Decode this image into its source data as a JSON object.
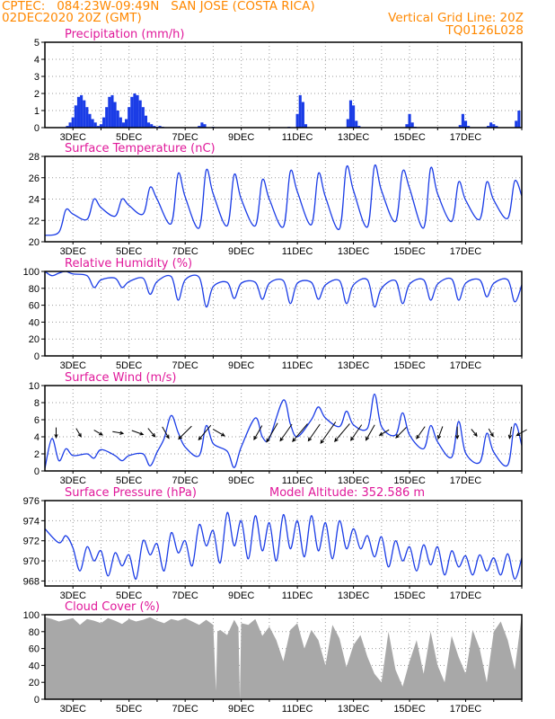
{
  "header": {
    "line1": "CPTEC:   084:23W-09:49N   SAN JOSE (COSTA RICA)",
    "line2": "02DEC2020 20Z (GMT)",
    "grid_note": "Vertical Grid Line: 20Z",
    "code": "TQ0126L028"
  },
  "colors": {
    "header": "#ff8800",
    "panel_title": "#e0189a",
    "series_line": "#1a3ce6",
    "precip_bar": "#1a3ce6",
    "cloud_fill": "#a8a8a8",
    "grid": "#9a9a9a",
    "arrow": "#000000"
  },
  "chart_data": [
    {
      "id": "precip",
      "type": "bar",
      "title": "Precipitation (mm/h)",
      "ylim": [
        0,
        5
      ],
      "yticks": [
        0,
        1,
        2,
        3,
        4,
        5
      ],
      "xticks": [
        "3DEC",
        "5DEC",
        "7DEC",
        "9DEC",
        "11DEC",
        "13DEC",
        "15DEC",
        "17DEC"
      ],
      "grid": true,
      "x": [
        0.8,
        0.9,
        1.0,
        1.1,
        1.2,
        1.3,
        1.4,
        1.5,
        1.6,
        1.7,
        1.8,
        1.9,
        2.0,
        2.1,
        2.2,
        2.3,
        2.4,
        2.5,
        2.6,
        2.7,
        2.8,
        2.9,
        3.0,
        3.1,
        3.2,
        3.3,
        3.4,
        3.5,
        3.6,
        3.7,
        3.8,
        3.9,
        4.0,
        4.1,
        4.2,
        5.5,
        5.6,
        5.7,
        6.0,
        8.7,
        9.0,
        9.1,
        9.2,
        9.3,
        10.8,
        10.9,
        11.0,
        11.1,
        11.2,
        12.9,
        13.0,
        13.1,
        13.2,
        14.8,
        14.9,
        15.0,
        15.1,
        15.8,
        15.9,
        16.0,
        16.1,
        16.8,
        16.9
      ],
      "values": [
        0.1,
        0.3,
        0.6,
        1.3,
        1.8,
        1.9,
        1.6,
        1.2,
        0.8,
        0.5,
        0.3,
        0.1,
        0.2,
        0.6,
        1.2,
        1.8,
        1.9,
        1.5,
        1.0,
        0.6,
        0.3,
        0.5,
        1.2,
        1.8,
        2.0,
        1.9,
        1.6,
        1.2,
        0.7,
        0.3,
        0.2,
        0.1,
        0.05,
        0.1,
        0.05,
        0.1,
        0.3,
        0.2,
        0.05,
        0.05,
        0.8,
        1.9,
        1.5,
        0.2,
        0.5,
        1.6,
        1.3,
        0.4,
        0.1,
        0.2,
        0.8,
        0.3,
        0.05,
        0.15,
        0.8,
        0.4,
        0.1,
        0.1,
        0.3,
        0.2,
        0.1,
        0.4,
        1.0
      ]
    },
    {
      "id": "temp",
      "type": "line",
      "title": "Surface Temperature (nC)",
      "ylim": [
        20,
        28
      ],
      "yticks": [
        20,
        22,
        24,
        26,
        28
      ],
      "xticks": [
        "3DEC",
        "5DEC",
        "7DEC",
        "9DEC",
        "11DEC",
        "13DEC",
        "15DEC",
        "17DEC"
      ],
      "grid": true,
      "x": [
        0.0,
        0.5,
        0.75,
        1.0,
        1.5,
        1.75,
        2.0,
        2.5,
        2.75,
        3.0,
        3.5,
        3.75,
        4.0,
        4.5,
        4.75,
        5.0,
        5.5,
        5.75,
        6.0,
        6.5,
        6.75,
        7.0,
        7.5,
        7.75,
        8.0,
        8.5,
        8.75,
        9.0,
        9.5,
        9.75,
        10.0,
        10.5,
        10.75,
        11.0,
        11.5,
        11.75,
        12.0,
        12.5,
        12.75,
        13.0,
        13.5,
        13.75,
        14.0,
        14.5,
        14.75,
        15.0,
        15.5,
        15.75,
        16.0,
        16.5,
        16.75,
        17.0
      ],
      "values": [
        20.6,
        20.9,
        23.0,
        22.6,
        22.1,
        24.0,
        23.2,
        22.4,
        24.0,
        23.4,
        22.6,
        25.1,
        24.0,
        21.7,
        26.4,
        24.2,
        21.3,
        26.7,
        24.5,
        21.5,
        26.3,
        24.0,
        21.5,
        25.8,
        24.0,
        21.4,
        26.6,
        24.7,
        21.6,
        26.4,
        24.2,
        21.2,
        27.0,
        24.8,
        21.4,
        27.1,
        24.8,
        21.9,
        26.6,
        25.0,
        21.3,
        26.9,
        24.5,
        21.9,
        25.6,
        23.9,
        22.1,
        25.6,
        23.9,
        22.2,
        25.7,
        24.3
      ]
    },
    {
      "id": "humidity",
      "type": "line",
      "title": "Relative Humidity (%)",
      "ylim": [
        0,
        100
      ],
      "yticks": [
        0,
        20,
        40,
        60,
        80,
        100
      ],
      "xticks": [
        "3DEC",
        "5DEC",
        "7DEC",
        "9DEC",
        "11DEC",
        "13DEC",
        "15DEC",
        "17DEC"
      ],
      "grid": true,
      "x": [
        0.0,
        0.25,
        0.5,
        0.75,
        1.0,
        1.5,
        1.75,
        2.0,
        2.5,
        2.75,
        3.0,
        3.5,
        3.75,
        4.0,
        4.5,
        4.75,
        5.0,
        5.5,
        5.75,
        6.0,
        6.5,
        6.75,
        7.0,
        7.5,
        7.75,
        8.0,
        8.5,
        8.75,
        9.0,
        9.5,
        9.75,
        10.0,
        10.5,
        10.75,
        11.0,
        11.5,
        11.75,
        12.0,
        12.5,
        12.75,
        13.0,
        13.5,
        13.75,
        14.0,
        14.5,
        14.75,
        15.0,
        15.5,
        15.75,
        16.0,
        16.5,
        16.75,
        17.0
      ],
      "values": [
        100,
        95,
        98,
        100,
        97,
        95,
        81,
        90,
        92,
        81,
        88,
        92,
        73,
        88,
        94,
        66,
        90,
        93,
        58,
        82,
        87,
        68,
        86,
        87,
        67,
        86,
        89,
        62,
        86,
        87,
        67,
        84,
        89,
        62,
        84,
        90,
        58,
        80,
        89,
        62,
        85,
        90,
        66,
        85,
        91,
        66,
        86,
        90,
        70,
        86,
        90,
        64,
        84
      ]
    },
    {
      "id": "wind",
      "type": "line",
      "title": "Surface Wind (m/s)",
      "ylim": [
        0,
        10
      ],
      "yticks": [
        0,
        2,
        4,
        6,
        8,
        10
      ],
      "xticks": [
        "3DEC",
        "5DEC",
        "7DEC",
        "9DEC",
        "11DEC",
        "13DEC",
        "15DEC",
        "17DEC"
      ],
      "grid": true,
      "x": [
        0.0,
        0.25,
        0.5,
        0.75,
        1.0,
        1.5,
        1.75,
        2.0,
        2.5,
        2.75,
        3.0,
        3.5,
        3.75,
        4.0,
        4.25,
        4.5,
        4.75,
        5.0,
        5.5,
        5.75,
        6.0,
        6.5,
        6.75,
        7.0,
        7.5,
        7.75,
        8.0,
        8.5,
        8.75,
        9.0,
        9.5,
        9.75,
        10.0,
        10.5,
        10.75,
        11.0,
        11.5,
        11.75,
        12.0,
        12.5,
        12.75,
        13.0,
        13.5,
        13.75,
        14.0,
        14.5,
        14.75,
        15.0,
        15.5,
        15.75,
        16.0,
        16.5,
        16.75,
        17.0
      ],
      "values": [
        0.3,
        3.8,
        1.2,
        2.6,
        1.8,
        2.0,
        1.5,
        2.5,
        1.8,
        1.2,
        1.8,
        2.0,
        0.6,
        2.2,
        3.8,
        6.5,
        4.5,
        2.8,
        1.8,
        5.3,
        3.2,
        2.3,
        0.4,
        2.8,
        6.2,
        4.0,
        3.8,
        8.3,
        5.5,
        4.0,
        6.0,
        7.5,
        6.2,
        5.2,
        7.0,
        5.4,
        5.0,
        9.0,
        5.2,
        4.2,
        6.8,
        4.2,
        2.6,
        5.3,
        3.4,
        1.6,
        5.8,
        2.1,
        1.0,
        4.4,
        2.2,
        0.7,
        5.5,
        3.0
      ],
      "arrows": [
        {
          "x": 0.4,
          "speed": 2.0,
          "dir_deg": 0
        },
        {
          "x": 1.2,
          "speed": 1.8,
          "dir_deg": 330
        },
        {
          "x": 1.9,
          "speed": 1.8,
          "dir_deg": 300
        },
        {
          "x": 2.6,
          "speed": 2.2,
          "dir_deg": 280
        },
        {
          "x": 3.3,
          "speed": 2.6,
          "dir_deg": 290
        },
        {
          "x": 3.8,
          "speed": 2.2,
          "dir_deg": 320
        },
        {
          "x": 4.3,
          "speed": 3.0,
          "dir_deg": 330
        },
        {
          "x": 5.0,
          "speed": 4.8,
          "dir_deg": 45
        },
        {
          "x": 5.7,
          "speed": 5.0,
          "dir_deg": 40
        },
        {
          "x": 6.2,
          "speed": 3.0,
          "dir_deg": 300
        },
        {
          "x": 7.6,
          "speed": 4.0,
          "dir_deg": 30
        },
        {
          "x": 8.1,
          "speed": 6.0,
          "dir_deg": 30
        },
        {
          "x": 8.6,
          "speed": 5.5,
          "dir_deg": 35
        },
        {
          "x": 9.1,
          "speed": 6.5,
          "dir_deg": 40
        },
        {
          "x": 9.6,
          "speed": 5.5,
          "dir_deg": 35
        },
        {
          "x": 10.1,
          "speed": 7.5,
          "dir_deg": 35
        },
        {
          "x": 10.6,
          "speed": 6.5,
          "dir_deg": 40
        },
        {
          "x": 11.1,
          "speed": 5.0,
          "dir_deg": 35
        },
        {
          "x": 11.6,
          "speed": 4.5,
          "dir_deg": 30
        },
        {
          "x": 12.1,
          "speed": 2.2,
          "dir_deg": 60
        },
        {
          "x": 12.7,
          "speed": 3.5,
          "dir_deg": 45
        },
        {
          "x": 13.4,
          "speed": 3.5,
          "dir_deg": 35
        },
        {
          "x": 14.1,
          "speed": 3.0,
          "dir_deg": 20
        },
        {
          "x": 14.7,
          "speed": 2.6,
          "dir_deg": 0
        },
        {
          "x": 15.3,
          "speed": 1.5,
          "dir_deg": 320
        },
        {
          "x": 15.9,
          "speed": 1.5,
          "dir_deg": 330
        },
        {
          "x": 16.6,
          "speed": 2.5,
          "dir_deg": 10
        },
        {
          "x": 17.0,
          "speed": 2.5,
          "dir_deg": 60
        }
      ]
    },
    {
      "id": "pressure",
      "type": "line",
      "title": "Surface Pressure (hPa)",
      "annotation": "Model Altitude: 352.586 m",
      "ylim": [
        967.5,
        976
      ],
      "yticks": [
        968,
        970,
        972,
        974,
        976
      ],
      "xticks": [
        "3DEC",
        "5DEC",
        "7DEC",
        "9DEC",
        "11DEC",
        "13DEC",
        "15DEC",
        "17DEC"
      ],
      "grid": true,
      "x": [
        0.0,
        0.5,
        0.75,
        1.0,
        1.25,
        1.5,
        1.75,
        2.0,
        2.25,
        2.5,
        2.75,
        3.0,
        3.25,
        3.5,
        3.75,
        4.0,
        4.25,
        4.5,
        4.75,
        5.0,
        5.25,
        5.5,
        5.75,
        6.0,
        6.25,
        6.5,
        6.75,
        7.0,
        7.25,
        7.5,
        7.75,
        8.0,
        8.25,
        8.5,
        8.75,
        9.0,
        9.25,
        9.5,
        9.75,
        10.0,
        10.25,
        10.5,
        10.75,
        11.0,
        11.25,
        11.5,
        11.75,
        12.0,
        12.25,
        12.5,
        12.75,
        13.0,
        13.25,
        13.5,
        13.75,
        14.0,
        14.25,
        14.5,
        14.75,
        15.0,
        15.25,
        15.5,
        15.75,
        16.0,
        16.25,
        16.5,
        16.75,
        17.0
      ],
      "values": [
        973.2,
        971.8,
        972.5,
        971.3,
        969.0,
        971.4,
        970.0,
        971.0,
        968.5,
        970.8,
        969.5,
        970.6,
        968.2,
        972.0,
        970.6,
        971.7,
        969.0,
        972.8,
        970.8,
        972.0,
        969.5,
        973.6,
        971.5,
        973.0,
        969.8,
        974.8,
        971.5,
        974.0,
        970.2,
        974.5,
        971.0,
        973.8,
        970.0,
        974.6,
        971.2,
        974.0,
        970.4,
        974.5,
        971.0,
        973.8,
        970.2,
        974.0,
        971.2,
        973.2,
        971.2,
        972.5,
        970.4,
        972.4,
        969.4,
        972.0,
        970.0,
        971.4,
        969.0,
        971.6,
        969.6,
        971.4,
        968.6,
        971.0,
        969.4,
        970.5,
        968.6,
        970.6,
        969.0,
        970.3,
        968.6,
        970.7,
        968.2,
        970.3
      ]
    },
    {
      "id": "cloud",
      "type": "area",
      "title": "Cloud Cover (%)",
      "ylim": [
        0,
        100
      ],
      "yticks": [
        0,
        20,
        40,
        60,
        80,
        100
      ],
      "xticks": [
        "3DEC",
        "5DEC",
        "7DEC",
        "9DEC",
        "11DEC",
        "13DEC",
        "15DEC",
        "17DEC"
      ],
      "grid": true,
      "x": [
        0.0,
        0.25,
        0.5,
        0.75,
        1.0,
        1.25,
        1.5,
        1.75,
        2.0,
        2.25,
        2.5,
        2.75,
        3.0,
        3.25,
        3.5,
        3.75,
        4.0,
        4.25,
        4.5,
        4.75,
        5.0,
        5.25,
        5.5,
        5.75,
        6.0,
        6.1,
        6.15,
        6.25,
        6.5,
        6.75,
        6.9,
        6.95,
        7.0,
        7.25,
        7.5,
        7.75,
        8.0,
        8.25,
        8.5,
        8.75,
        9.0,
        9.25,
        9.5,
        9.75,
        10.0,
        10.25,
        10.5,
        10.75,
        11.0,
        11.25,
        11.5,
        11.75,
        12.0,
        12.25,
        12.5,
        12.75,
        13.0,
        13.25,
        13.5,
        13.75,
        14.0,
        14.25,
        14.5,
        14.75,
        15.0,
        15.25,
        15.5,
        15.75,
        16.0,
        16.25,
        16.5,
        16.75,
        17.0
      ],
      "values": [
        97,
        95,
        92,
        94,
        96,
        88,
        95,
        93,
        90,
        96,
        93,
        89,
        95,
        92,
        94,
        97,
        93,
        90,
        95,
        93,
        96,
        92,
        88,
        94,
        88,
        10,
        80,
        82,
        76,
        94,
        85,
        0,
        90,
        88,
        95,
        75,
        86,
        70,
        45,
        82,
        90,
        60,
        82,
        70,
        40,
        88,
        72,
        38,
        64,
        76,
        50,
        30,
        20,
        80,
        35,
        15,
        45,
        70,
        30,
        80,
        40,
        20,
        75,
        50,
        30,
        82,
        60,
        20,
        80,
        92,
        70,
        35,
        100
      ]
    }
  ]
}
